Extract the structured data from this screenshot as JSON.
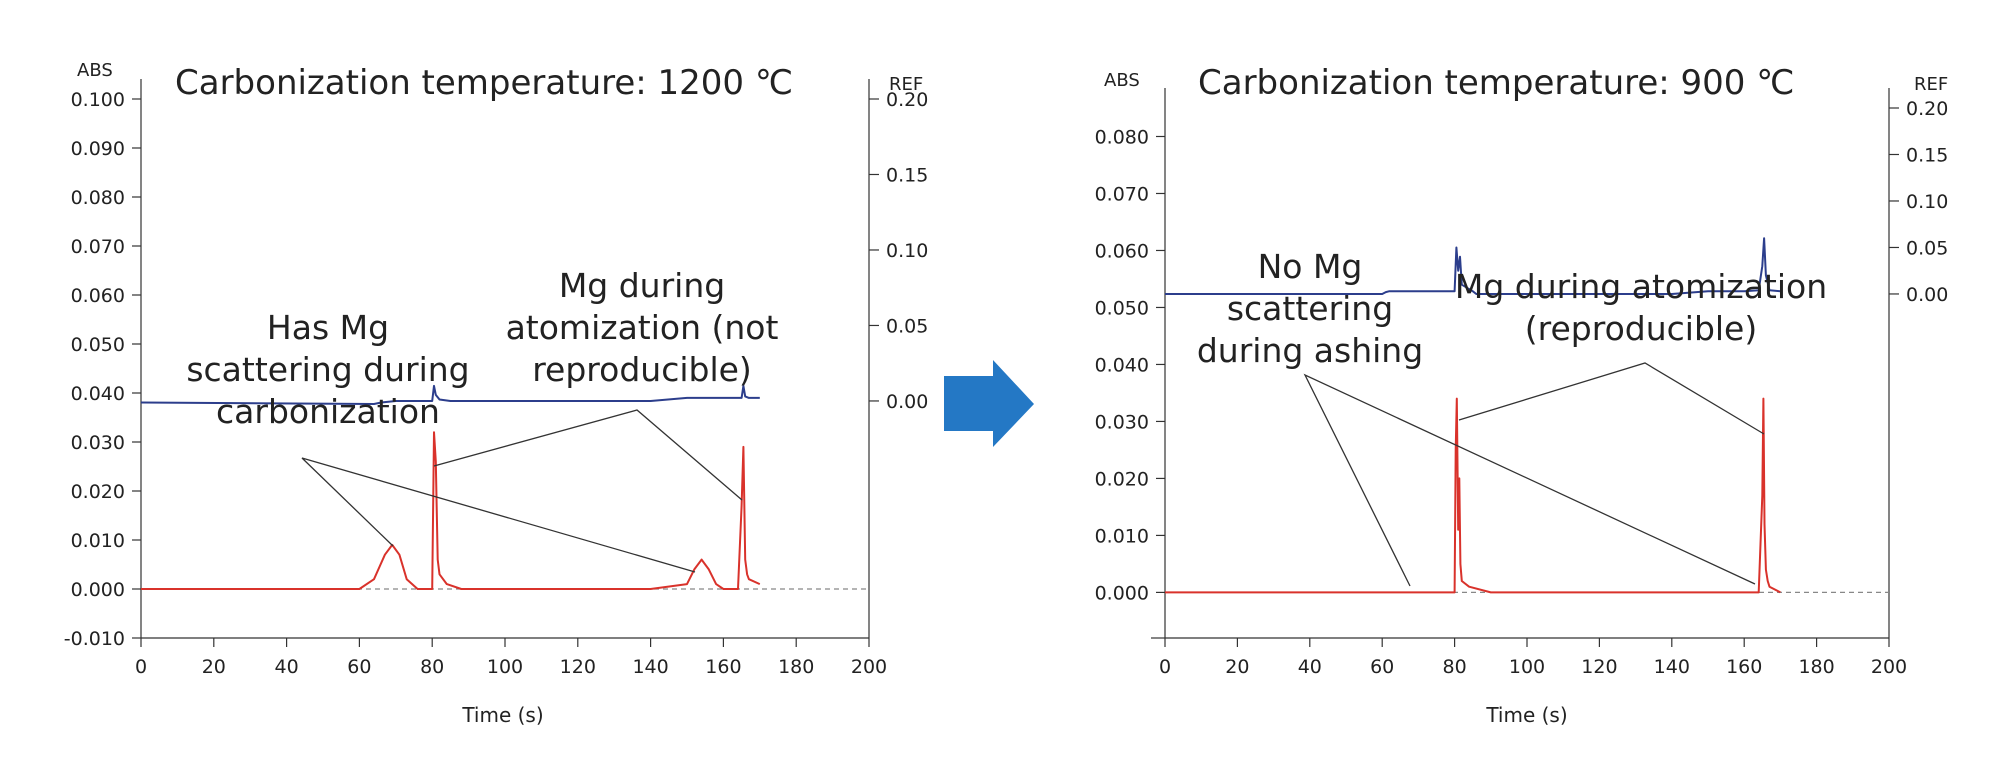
{
  "colors": {
    "red": "#d9322b",
    "blue": "#2c3e8c",
    "arrow": "#2478c5"
  },
  "chart_data": [
    {
      "type": "line",
      "title": "Carbonization temperature: 1200 ℃",
      "xlabel": "Time (s)",
      "ylabel": "ABS",
      "y2label": "REF",
      "xlim": [
        0,
        200
      ],
      "ylim": [
        -0.01,
        0.1
      ],
      "y2lim": [
        -0.157,
        0.2
      ],
      "x_ticks": [
        "0",
        "20",
        "40",
        "60",
        "80",
        "100",
        "120",
        "140",
        "160",
        "180",
        "200"
      ],
      "y_ticks": [
        "-0.010",
        "0.000",
        "0.010",
        "0.020",
        "0.030",
        "0.040",
        "0.050",
        "0.060",
        "0.070",
        "0.080",
        "0.090",
        "0.100"
      ],
      "y2_ticks": [
        "0.00",
        "0.05",
        "0.10",
        "0.15",
        "0.20"
      ],
      "series": [
        {
          "color": "red",
          "x": [
            0,
            10,
            20,
            30,
            40,
            50,
            60,
            64,
            67,
            69,
            71,
            73,
            76,
            80,
            80.5,
            81,
            81.5,
            82,
            84,
            88,
            100,
            120,
            140,
            150,
            152,
            154,
            156,
            158,
            160,
            164,
            165,
            165.5,
            166,
            166.5,
            167,
            170
          ],
          "y": [
            0,
            0,
            0,
            0,
            0,
            0,
            0,
            0.002,
            0.007,
            0.009,
            0.007,
            0.002,
            0,
            0,
            0.032,
            0.026,
            0.006,
            0.003,
            0.001,
            0,
            0,
            0,
            0,
            0.001,
            0.004,
            0.006,
            0.004,
            0.001,
            0,
            0,
            0.017,
            0.029,
            0.006,
            0.003,
            0.002,
            0.001
          ]
        },
        {
          "color": "blue",
          "y_axis": "right",
          "x": [
            0,
            64,
            66,
            70,
            80,
            80.5,
            81,
            82,
            85,
            100,
            120,
            140,
            150,
            155,
            160,
            165,
            165.5,
            166,
            167,
            170
          ],
          "y": [
            -0.001,
            -0.002,
            -0.001,
            0,
            0,
            0.01,
            0.004,
            0.001,
            0,
            0,
            0,
            0,
            0.002,
            0.002,
            0.002,
            0.002,
            0.01,
            0.003,
            0.002,
            0.002
          ]
        }
      ],
      "annotations": [
        {
          "lines": [
            "Has Mg",
            "scattering during",
            "carbonization"
          ]
        },
        {
          "lines": [
            "Mg during",
            "atomization (not",
            "reproducible)"
          ]
        }
      ]
    },
    {
      "type": "line",
      "title": "Carbonization temperature: 900 ℃",
      "xlabel": "Time (s)",
      "ylabel": "ABS",
      "y2label": "REF",
      "xlim": [
        0,
        200
      ],
      "ylim": [
        -0.008,
        0.085
      ],
      "y2lim": [
        -0.37,
        0.2
      ],
      "x_ticks": [
        "0",
        "20",
        "40",
        "60",
        "80",
        "100",
        "120",
        "140",
        "160",
        "180",
        "200"
      ],
      "y_ticks": [
        "0.000",
        "0.010",
        "0.020",
        "0.030",
        "0.040",
        "0.050",
        "0.060",
        "0.070",
        "0.080"
      ],
      "y2_ticks": [
        "0.00",
        "0.05",
        "0.10",
        "0.15",
        "0.20"
      ],
      "series": [
        {
          "color": "red",
          "x": [
            0,
            20,
            40,
            60,
            70,
            80,
            80.3,
            80.6,
            81,
            81.3,
            81.6,
            82,
            84,
            90,
            100,
            120,
            140,
            160,
            164,
            165,
            165.3,
            165.6,
            166,
            166.5,
            167,
            170
          ],
          "y": [
            0,
            0,
            0,
            0,
            0,
            0,
            0.025,
            0.034,
            0.011,
            0.02,
            0.005,
            0.002,
            0.001,
            0,
            0,
            0,
            0,
            0,
            0,
            0.017,
            0.034,
            0.012,
            0.004,
            0.002,
            0.001,
            0
          ]
        },
        {
          "color": "blue",
          "x": [
            0,
            20,
            40,
            60,
            61,
            62,
            70,
            80,
            80.5,
            81,
            81.5,
            82,
            85,
            86,
            100,
            120,
            140,
            150,
            155,
            160,
            164,
            165,
            165.5,
            166,
            167,
            170
          ],
          "y": [
            0,
            0,
            0,
            0,
            0.002,
            0.003,
            0.003,
            0.003,
            0.05,
            0.025,
            0.04,
            0.01,
            0.003,
            0,
            0,
            0,
            0,
            0.003,
            0.003,
            0.003,
            0.004,
            0.03,
            0.06,
            0.02,
            0.004,
            0.003
          ],
          "y_axis": "right"
        }
      ],
      "annotations": [
        {
          "lines": [
            "No Mg",
            "scattering",
            "during ashing"
          ]
        },
        {
          "lines": [
            "Mg during atomization",
            "(reproducible)"
          ]
        }
      ]
    }
  ]
}
